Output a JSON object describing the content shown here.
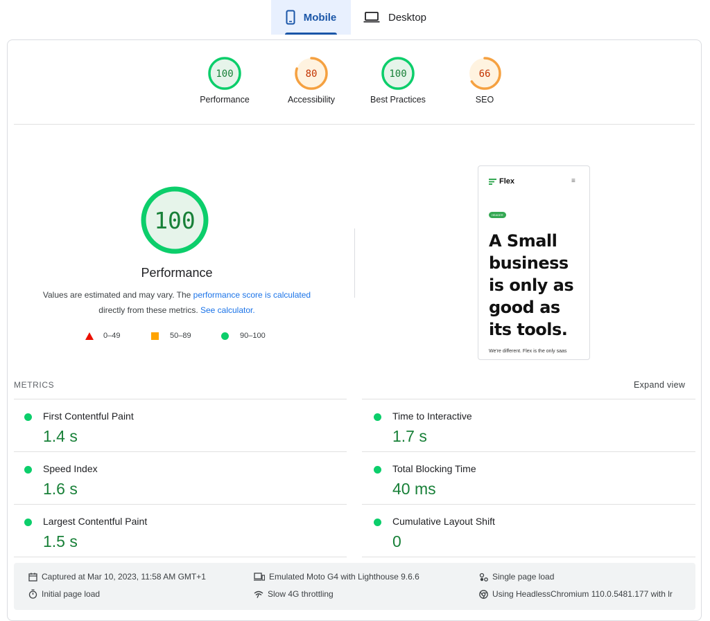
{
  "tabs": {
    "mobile": "Mobile",
    "desktop": "Desktop"
  },
  "scores": [
    {
      "value": "100",
      "label": "Performance",
      "score": 1.0,
      "color": "#0cce6b",
      "fill": "#e6f4ea",
      "text": "#188038"
    },
    {
      "value": "80",
      "label": "Accessibility",
      "score": 0.8,
      "color": "#f5a141",
      "fill": "#fff3e0",
      "text": "#c33300"
    },
    {
      "value": "100",
      "label": "Best Practices",
      "score": 1.0,
      "color": "#0cce6b",
      "fill": "#e6f4ea",
      "text": "#188038"
    },
    {
      "value": "66",
      "label": "SEO",
      "score": 0.66,
      "color": "#f5a141",
      "fill": "#fff3e0",
      "text": "#c33300"
    }
  ],
  "performance": {
    "score": "100",
    "title": "Performance",
    "note_prefix": "Values are estimated and may vary. The ",
    "note_link": "performance score is calculated",
    "note_middle": "directly from these metrics. ",
    "note_link2": "See calculator.",
    "legend": {
      "fail": "0–49",
      "average": "50–89",
      "pass": "90–100"
    }
  },
  "preview": {
    "logo": "Flex",
    "badge": "HEADER",
    "headline_lines": [
      "A Small",
      "business",
      "is only as",
      "good as",
      "its tools."
    ],
    "footer": "We're different. Flex is the only saas"
  },
  "metrics": {
    "heading": "METRICS",
    "expand": "Expand view",
    "items": [
      {
        "name": "First Contentful Paint",
        "value": "1.4 s"
      },
      {
        "name": "Time to Interactive",
        "value": "1.7 s"
      },
      {
        "name": "Speed Index",
        "value": "1.6 s"
      },
      {
        "name": "Total Blocking Time",
        "value": "40 ms"
      },
      {
        "name": "Largest Contentful Paint",
        "value": "1.5 s"
      },
      {
        "name": "Cumulative Layout Shift",
        "value": "0"
      }
    ]
  },
  "environment": {
    "captured": "Captured at Mar 10, 2023, 11:58 AM GMT+1",
    "initial": "Initial page load",
    "emulated": "Emulated Moto G4 with Lighthouse 9.6.6",
    "throttling": "Slow 4G throttling",
    "single": "Single page load",
    "browser": "Using HeadlessChromium 110.0.5481.177 with lr"
  },
  "colors": {
    "pass": "#0cce6b",
    "average": "#ffa400",
    "fail": "#ff4e42",
    "link": "#1a73e8"
  }
}
